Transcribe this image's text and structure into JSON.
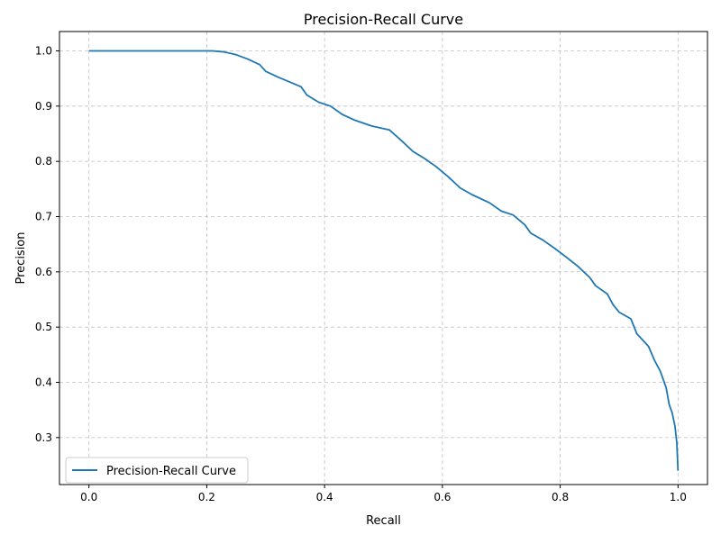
{
  "chart_data": {
    "type": "line",
    "title": "Precision-Recall Curve",
    "xlabel": "Recall",
    "ylabel": "Precision",
    "xlim": [
      -0.05,
      1.05
    ],
    "ylim": [
      0.215,
      1.035
    ],
    "x_ticks": [
      "0.0",
      "0.2",
      "0.4",
      "0.6",
      "0.8",
      "1.0"
    ],
    "y_ticks": [
      "0.3",
      "0.4",
      "0.5",
      "0.6",
      "0.7",
      "0.8",
      "0.9",
      "1.0"
    ],
    "grid": true,
    "grid_style": "dashed",
    "legend_position": "lower-left",
    "series": [
      {
        "name": "Precision-Recall Curve",
        "color": "#1f77b4",
        "points": [
          [
            0.0,
            1.0
          ],
          [
            0.21,
            1.0
          ],
          [
            0.23,
            0.998
          ],
          [
            0.25,
            0.993
          ],
          [
            0.27,
            0.985
          ],
          [
            0.29,
            0.975
          ],
          [
            0.3,
            0.963
          ],
          [
            0.32,
            0.953
          ],
          [
            0.34,
            0.944
          ],
          [
            0.36,
            0.935
          ],
          [
            0.37,
            0.92
          ],
          [
            0.39,
            0.907
          ],
          [
            0.41,
            0.9
          ],
          [
            0.43,
            0.885
          ],
          [
            0.45,
            0.875
          ],
          [
            0.48,
            0.864
          ],
          [
            0.51,
            0.857
          ],
          [
            0.53,
            0.838
          ],
          [
            0.55,
            0.818
          ],
          [
            0.57,
            0.805
          ],
          [
            0.59,
            0.79
          ],
          [
            0.61,
            0.772
          ],
          [
            0.63,
            0.752
          ],
          [
            0.65,
            0.74
          ],
          [
            0.68,
            0.725
          ],
          [
            0.7,
            0.71
          ],
          [
            0.72,
            0.703
          ],
          [
            0.74,
            0.685
          ],
          [
            0.75,
            0.67
          ],
          [
            0.77,
            0.658
          ],
          [
            0.79,
            0.643
          ],
          [
            0.81,
            0.627
          ],
          [
            0.83,
            0.61
          ],
          [
            0.85,
            0.59
          ],
          [
            0.86,
            0.575
          ],
          [
            0.88,
            0.56
          ],
          [
            0.89,
            0.54
          ],
          [
            0.9,
            0.527
          ],
          [
            0.92,
            0.515
          ],
          [
            0.93,
            0.488
          ],
          [
            0.95,
            0.465
          ],
          [
            0.96,
            0.44
          ],
          [
            0.97,
            0.42
          ],
          [
            0.98,
            0.39
          ],
          [
            0.985,
            0.36
          ],
          [
            0.99,
            0.345
          ],
          [
            0.995,
            0.32
          ],
          [
            0.998,
            0.29
          ],
          [
            1.0,
            0.24
          ]
        ]
      }
    ]
  }
}
